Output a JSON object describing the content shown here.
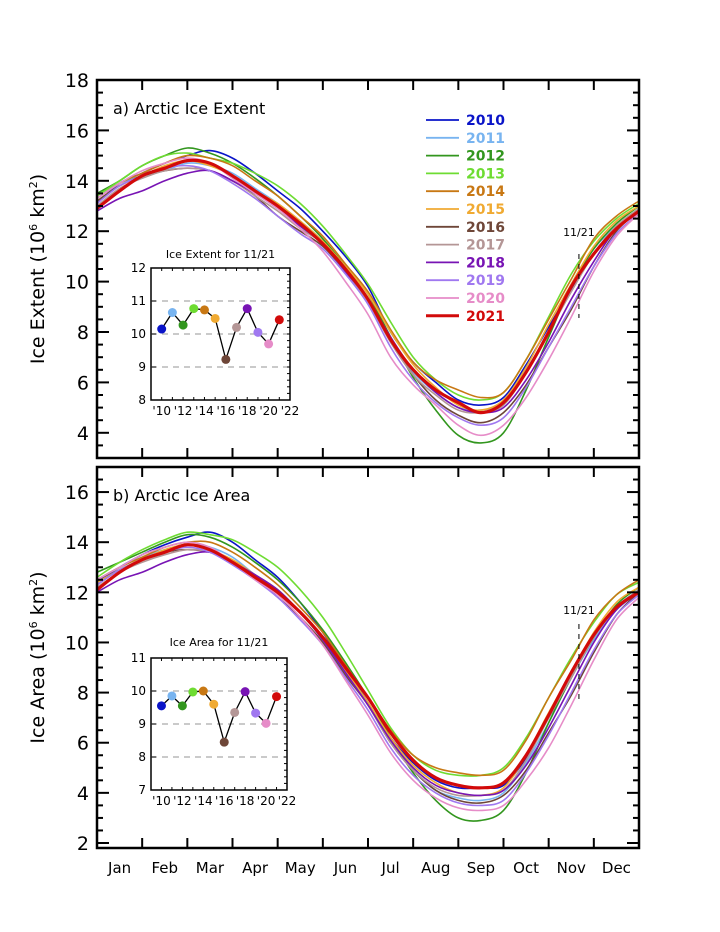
{
  "chart_data": [
    {
      "type": "line",
      "panel": "a",
      "title": "a) Arctic Ice Extent",
      "xlabel": "",
      "ylabel": "Ice Extent (10⁶ km²)",
      "ylabel_parts": {
        "main": "Ice Extent (10",
        "sup1": "6",
        "mid": " km",
        "sup2": "2",
        "end": ")"
      },
      "ylim": [
        3,
        18
      ],
      "yticks": [
        4,
        6,
        8,
        10,
        12,
        14,
        16,
        18
      ],
      "x_categories": [
        "Jan",
        "Feb",
        "Mar",
        "Apr",
        "May",
        "Jun",
        "Jul",
        "Aug",
        "Sep",
        "Oct",
        "Nov",
        "Dec"
      ],
      "marker": {
        "label": "11/21",
        "month_position": 10.67
      },
      "x_month_points": [
        0,
        0.5,
        1,
        1.5,
        2,
        2.5,
        3,
        3.5,
        4,
        4.5,
        5,
        5.5,
        6,
        6.5,
        7,
        7.5,
        8,
        8.5,
        9,
        9.5,
        10,
        10.5,
        11,
        11.5,
        12
      ],
      "series": [
        {
          "name": "2010",
          "color": "#0a14c8",
          "values": [
            13.1,
            13.9,
            14.3,
            14.7,
            15.0,
            15.2,
            14.9,
            14.3,
            13.6,
            12.9,
            12.0,
            11.0,
            9.8,
            8.0,
            6.8,
            6.0,
            5.3,
            5.1,
            5.4,
            6.7,
            8.2,
            9.7,
            11.1,
            12.1,
            12.8
          ]
        },
        {
          "name": "2011",
          "color": "#78b4f0",
          "values": [
            13.3,
            13.9,
            14.2,
            14.4,
            14.7,
            14.6,
            14.3,
            13.7,
            13.1,
            12.4,
            11.6,
            10.5,
            9.3,
            7.6,
            6.4,
            5.6,
            5.0,
            4.9,
            5.2,
            6.5,
            8.0,
            9.9,
            11.3,
            12.2,
            12.9
          ]
        },
        {
          "name": "2012",
          "color": "#32961e",
          "values": [
            13.5,
            14.0,
            14.6,
            15.0,
            15.3,
            15.1,
            14.7,
            14.1,
            13.4,
            12.6,
            11.7,
            10.6,
            9.5,
            7.8,
            6.2,
            4.9,
            3.9,
            3.6,
            4.0,
            5.7,
            7.8,
            9.8,
            11.3,
            12.3,
            13.0
          ]
        },
        {
          "name": "2013",
          "color": "#6edc32",
          "values": [
            13.4,
            14.0,
            14.6,
            15.0,
            15.1,
            14.9,
            14.7,
            14.3,
            13.8,
            13.1,
            12.2,
            11.1,
            9.9,
            8.4,
            7.0,
            6.1,
            5.5,
            5.3,
            5.6,
            6.9,
            8.6,
            10.3,
            11.6,
            12.5,
            13.1
          ]
        },
        {
          "name": "2014",
          "color": "#c87814",
          "values": [
            13.3,
            13.9,
            14.3,
            14.7,
            15.0,
            14.9,
            14.6,
            14.0,
            13.4,
            12.6,
            11.8,
            10.7,
            9.6,
            8.1,
            6.8,
            6.1,
            5.7,
            5.4,
            5.6,
            6.9,
            8.5,
            10.1,
            11.7,
            12.6,
            13.2
          ]
        },
        {
          "name": "2015",
          "color": "#f0aa32",
          "values": [
            13.2,
            13.8,
            14.2,
            14.6,
            14.8,
            14.6,
            14.2,
            13.6,
            13.1,
            12.4,
            11.6,
            10.6,
            9.5,
            8.0,
            6.7,
            5.8,
            5.1,
            4.9,
            5.3,
            6.6,
            8.3,
            9.9,
            11.4,
            12.4,
            13.0
          ]
        },
        {
          "name": "2016",
          "color": "#6e4638",
          "values": [
            13.2,
            13.8,
            14.2,
            14.4,
            14.5,
            14.4,
            14.0,
            13.4,
            12.6,
            12.0,
            11.4,
            10.4,
            9.2,
            7.6,
            6.3,
            5.3,
            4.7,
            4.4,
            4.8,
            5.9,
            7.4,
            8.9,
            10.6,
            12.0,
            12.8
          ]
        },
        {
          "name": "2017",
          "color": "#b49696",
          "values": [
            13.0,
            13.7,
            14.1,
            14.4,
            14.5,
            14.4,
            14.0,
            13.4,
            12.8,
            12.1,
            11.5,
            10.4,
            9.2,
            7.6,
            6.3,
            5.5,
            4.9,
            4.8,
            5.1,
            6.4,
            8.0,
            9.6,
            11.1,
            12.2,
            12.9
          ]
        },
        {
          "name": "2018",
          "color": "#7814b4",
          "values": [
            12.8,
            13.3,
            13.6,
            14.0,
            14.3,
            14.4,
            14.0,
            13.5,
            12.9,
            12.2,
            11.5,
            10.4,
            9.3,
            7.8,
            6.5,
            5.6,
            5.0,
            4.8,
            5.0,
            6.1,
            7.6,
            9.3,
            10.8,
            12.1,
            12.7
          ]
        },
        {
          "name": "2019",
          "color": "#a078f0",
          "values": [
            13.1,
            13.8,
            14.2,
            14.5,
            14.6,
            14.4,
            13.9,
            13.3,
            12.6,
            11.9,
            11.3,
            10.3,
            9.1,
            7.4,
            6.1,
            5.2,
            4.6,
            4.3,
            4.6,
            5.8,
            7.4,
            9.0,
            10.6,
            11.9,
            12.7
          ]
        },
        {
          "name": "2020",
          "color": "#e68cc8",
          "values": [
            13.3,
            13.9,
            14.4,
            14.7,
            14.9,
            14.7,
            14.1,
            13.5,
            12.9,
            12.1,
            11.2,
            10.0,
            8.7,
            7.0,
            5.9,
            5.1,
            4.3,
            3.9,
            4.3,
            5.4,
            6.9,
            8.6,
            10.4,
            11.8,
            12.7
          ]
        },
        {
          "name": "2021",
          "color": "#d20a0a",
          "values": [
            12.9,
            13.6,
            14.2,
            14.5,
            14.8,
            14.7,
            14.2,
            13.6,
            13.0,
            12.3,
            11.5,
            10.5,
            9.3,
            7.7,
            6.5,
            5.7,
            5.2,
            4.8,
            5.2,
            6.4,
            8.0,
            9.8,
            11.1,
            12.1,
            12.8
          ]
        }
      ],
      "legend": {
        "placement": "top-right-center"
      },
      "inset": {
        "title": "Ice Extent for 11/21",
        "ylim": [
          8,
          12
        ],
        "yticks": [
          8,
          9,
          10,
          11,
          12
        ],
        "xlim": [
          2009,
          2022
        ],
        "xticks": [
          "'10",
          "'12",
          "'14",
          "'16",
          "'18",
          "'20",
          "'22"
        ],
        "xtick_values": [
          2010,
          2012,
          2014,
          2016,
          2018,
          2020,
          2022
        ],
        "grid_dashed_at": [
          9,
          10,
          11
        ],
        "years": [
          2010,
          2011,
          2012,
          2013,
          2014,
          2015,
          2016,
          2017,
          2018,
          2019,
          2020,
          2021
        ],
        "values": [
          10.15,
          10.65,
          10.27,
          10.77,
          10.73,
          10.47,
          9.23,
          10.2,
          10.77,
          10.05,
          9.7,
          10.43
        ]
      }
    },
    {
      "type": "line",
      "panel": "b",
      "title": "b) Arctic Ice Area",
      "xlabel": "",
      "ylabel": "Ice Area (10⁶ km²)",
      "ylabel_parts": {
        "main": "Ice Area (10",
        "sup1": "6",
        "mid": " km",
        "sup2": "2",
        "end": ")"
      },
      "ylim": [
        1.8,
        17
      ],
      "yticks": [
        2,
        4,
        6,
        8,
        10,
        12,
        14,
        16
      ],
      "x_categories": [
        "Jan",
        "Feb",
        "Mar",
        "Apr",
        "May",
        "Jun",
        "Jul",
        "Aug",
        "Sep",
        "Oct",
        "Nov",
        "Dec"
      ],
      "marker": {
        "label": "11/21",
        "month_position": 10.67
      },
      "x_month_points": [
        0,
        0.5,
        1,
        1.5,
        2,
        2.5,
        3,
        3.5,
        4,
        4.5,
        5,
        5.5,
        6,
        6.5,
        7,
        7.5,
        8,
        8.5,
        9,
        9.5,
        10,
        10.5,
        11,
        11.5,
        12
      ],
      "series": [
        {
          "name": "2010",
          "color": "#0a14c8",
          "values": [
            12.4,
            13.0,
            13.5,
            13.9,
            14.2,
            14.4,
            14.0,
            13.3,
            12.6,
            11.6,
            10.4,
            9.0,
            7.6,
            6.2,
            5.2,
            4.5,
            4.2,
            4.2,
            4.3,
            5.4,
            7.0,
            8.6,
            10.2,
            11.4,
            12.1
          ]
        },
        {
          "name": "2011",
          "color": "#78b4f0",
          "values": [
            12.5,
            13.0,
            13.4,
            13.7,
            13.9,
            13.8,
            13.4,
            12.7,
            12.1,
            11.2,
            10.1,
            8.8,
            7.5,
            6.0,
            4.9,
            4.1,
            3.8,
            3.7,
            4.0,
            5.2,
            6.8,
            8.6,
            10.1,
            11.3,
            12.0
          ]
        },
        {
          "name": "2012",
          "color": "#32961e",
          "values": [
            12.8,
            13.2,
            13.6,
            14.0,
            14.3,
            14.2,
            13.8,
            13.2,
            12.5,
            11.6,
            10.5,
            9.2,
            7.8,
            6.2,
            4.8,
            3.7,
            3.0,
            2.9,
            3.3,
            4.8,
            6.8,
            8.6,
            10.2,
            11.5,
            12.2
          ]
        },
        {
          "name": "2013",
          "color": "#6edc32",
          "values": [
            12.6,
            13.2,
            13.7,
            14.1,
            14.4,
            14.3,
            14.1,
            13.6,
            13.0,
            12.1,
            11.0,
            9.6,
            8.1,
            6.6,
            5.5,
            4.9,
            4.7,
            4.7,
            5.0,
            6.2,
            7.8,
            9.4,
            10.8,
            11.9,
            12.4
          ]
        },
        {
          "name": "2014",
          "color": "#c87814",
          "values": [
            12.5,
            13.0,
            13.4,
            13.8,
            14.0,
            14.0,
            13.6,
            13.0,
            12.3,
            11.4,
            10.4,
            9.1,
            7.8,
            6.5,
            5.5,
            5.0,
            4.8,
            4.7,
            4.9,
            6.1,
            7.8,
            9.3,
            10.9,
            11.9,
            12.5
          ]
        },
        {
          "name": "2015",
          "color": "#f0aa32",
          "values": [
            12.4,
            12.9,
            13.3,
            13.7,
            13.9,
            13.7,
            13.3,
            12.7,
            12.1,
            11.2,
            10.2,
            8.9,
            7.6,
            6.2,
            5.1,
            4.4,
            4.0,
            3.9,
            4.2,
            5.5,
            7.2,
            8.8,
            10.4,
            11.6,
            12.2
          ]
        },
        {
          "name": "2016",
          "color": "#6e4638",
          "values": [
            12.3,
            12.9,
            13.3,
            13.6,
            13.7,
            13.6,
            13.2,
            12.6,
            11.8,
            11.0,
            10.0,
            8.7,
            7.5,
            6.0,
            4.9,
            4.1,
            3.7,
            3.6,
            3.9,
            4.9,
            6.4,
            7.9,
            9.6,
            11.1,
            12.0
          ]
        },
        {
          "name": "2017",
          "color": "#b49696",
          "values": [
            12.2,
            12.8,
            13.2,
            13.5,
            13.7,
            13.6,
            13.2,
            12.7,
            12.1,
            11.2,
            10.1,
            8.8,
            7.5,
            6.0,
            4.9,
            4.2,
            3.9,
            3.9,
            4.1,
            5.3,
            7.0,
            8.6,
            10.2,
            11.4,
            12.1
          ]
        },
        {
          "name": "2018",
          "color": "#7814b4",
          "values": [
            12.0,
            12.5,
            12.8,
            13.2,
            13.5,
            13.6,
            13.2,
            12.7,
            12.1,
            11.2,
            10.1,
            8.8,
            7.5,
            6.1,
            5.0,
            4.3,
            4.0,
            3.9,
            4.1,
            5.1,
            6.6,
            8.3,
            10.0,
            11.3,
            12.0
          ]
        },
        {
          "name": "2019",
          "color": "#a078f0",
          "values": [
            12.3,
            12.9,
            13.3,
            13.6,
            13.8,
            13.6,
            13.1,
            12.5,
            11.8,
            10.9,
            9.9,
            8.6,
            7.3,
            5.8,
            4.7,
            4.0,
            3.6,
            3.5,
            3.7,
            4.8,
            6.3,
            8.0,
            9.7,
            11.1,
            11.9
          ]
        },
        {
          "name": "2020",
          "color": "#e68cc8",
          "values": [
            12.5,
            13.0,
            13.5,
            13.8,
            14.0,
            13.8,
            13.2,
            12.5,
            11.9,
            11.0,
            9.9,
            8.5,
            7.1,
            5.6,
            4.5,
            3.8,
            3.4,
            3.3,
            3.5,
            4.5,
            5.8,
            7.5,
            9.3,
            10.9,
            11.8
          ]
        },
        {
          "name": "2021",
          "color": "#d20a0a",
          "values": [
            12.1,
            12.8,
            13.3,
            13.6,
            13.9,
            13.7,
            13.2,
            12.6,
            12.0,
            11.2,
            10.2,
            9.0,
            7.8,
            6.4,
            5.3,
            4.6,
            4.3,
            4.2,
            4.4,
            5.5,
            7.1,
            8.8,
            10.3,
            11.4,
            12.0
          ]
        }
      ],
      "inset": {
        "title": "Ice Area for 11/21",
        "ylim": [
          7,
          11
        ],
        "yticks": [
          7,
          8,
          9,
          10,
          11
        ],
        "xlim": [
          2009,
          2022
        ],
        "xticks": [
          "'10",
          "'12",
          "'14",
          "'16",
          "'18",
          "'20",
          "'22"
        ],
        "xtick_values": [
          2010,
          2012,
          2014,
          2016,
          2018,
          2020,
          2022
        ],
        "grid_dashed_at": [
          8,
          9,
          10
        ],
        "years": [
          2010,
          2011,
          2012,
          2013,
          2014,
          2015,
          2016,
          2017,
          2018,
          2019,
          2020,
          2021
        ],
        "values": [
          9.55,
          9.85,
          9.55,
          9.97,
          10.0,
          9.6,
          8.45,
          9.35,
          9.98,
          9.33,
          9.02,
          9.83
        ]
      }
    }
  ],
  "legend": {
    "entries": [
      {
        "label": "2010",
        "color": "#0a14c8"
      },
      {
        "label": "2011",
        "color": "#78b4f0"
      },
      {
        "label": "2012",
        "color": "#32961e"
      },
      {
        "label": "2013",
        "color": "#6edc32"
      },
      {
        "label": "2014",
        "color": "#c87814"
      },
      {
        "label": "2015",
        "color": "#f0aa32"
      },
      {
        "label": "2016",
        "color": "#6e4638"
      },
      {
        "label": "2017",
        "color": "#b49696"
      },
      {
        "label": "2018",
        "color": "#7814b4"
      },
      {
        "label": "2019",
        "color": "#a078f0"
      },
      {
        "label": "2020",
        "color": "#e68cc8"
      },
      {
        "label": "2021",
        "color": "#d20a0a"
      }
    ],
    "highlight": "2021"
  }
}
